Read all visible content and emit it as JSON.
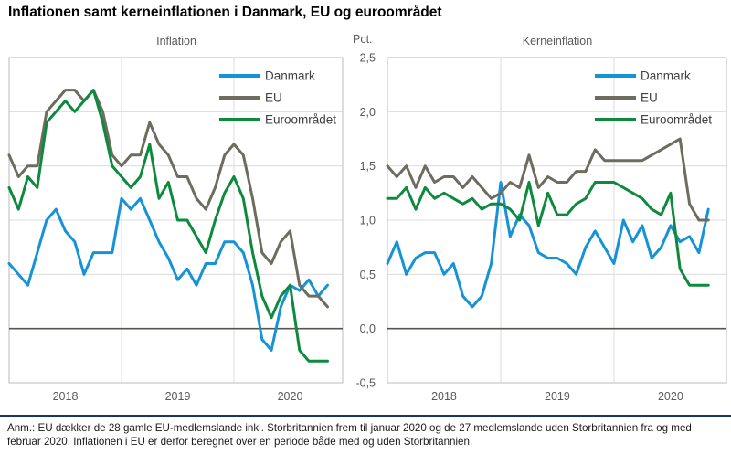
{
  "title": "Inflationen samt kerneinflationen i Danmark, EU og euroområdet",
  "footnote": "Anm.: EU dækker de 28 gamle EU-medlemslande inkl. Storbritannien frem til januar 2020 og de 27 medlemslande uden Storbritannien fra og med februar 2020. Inflationen i EU er derfor beregnet over en periode både med og uden Storbritannien.",
  "unit_label": "Pct.",
  "colors": {
    "danmark": "#1593d6",
    "eu": "#6e6c5e",
    "euroomraadet": "#0e8a3e",
    "gridline": "#dcdcda",
    "plot_border": "#c6c6c4",
    "zero_line": "#55544e",
    "footer_rule": "#16365c",
    "label_text": "#595959",
    "legend_text": "#404040"
  },
  "chart_data": [
    {
      "type": "line",
      "title": "Inflation",
      "x_months": [
        "2018-01",
        "2018-02",
        "2018-03",
        "2018-04",
        "2018-05",
        "2018-06",
        "2018-07",
        "2018-08",
        "2018-09",
        "2018-10",
        "2018-11",
        "2018-12",
        "2019-01",
        "2019-02",
        "2019-03",
        "2019-04",
        "2019-05",
        "2019-06",
        "2019-07",
        "2019-08",
        "2019-09",
        "2019-10",
        "2019-11",
        "2019-12",
        "2020-01",
        "2020-02",
        "2020-03",
        "2020-04",
        "2020-05",
        "2020-06",
        "2020-07",
        "2020-08",
        "2020-09",
        "2020-10",
        "2020-11"
      ],
      "x_tick_labels": [
        "2018",
        "2019",
        "2020"
      ],
      "ylim": [
        -0.5,
        2.5
      ],
      "y_tick_step": 0.5,
      "grid": true,
      "legend_position": "top-right",
      "legend_entries": [
        "Danmark",
        "EU",
        "Euroområdet"
      ],
      "series": [
        {
          "name": "Danmark",
          "color": "#1593d6",
          "values": [
            0.6,
            0.5,
            0.4,
            0.7,
            1.0,
            1.1,
            0.9,
            0.8,
            0.5,
            0.7,
            0.7,
            0.7,
            1.2,
            1.1,
            1.2,
            1.0,
            0.8,
            0.65,
            0.45,
            0.55,
            0.4,
            0.6,
            0.6,
            0.8,
            0.8,
            0.7,
            0.4,
            -0.1,
            -0.2,
            0.2,
            0.4,
            0.35,
            0.45,
            0.3,
            0.4
          ]
        },
        {
          "name": "EU",
          "color": "#6e6c5e",
          "values": [
            1.6,
            1.4,
            1.5,
            1.5,
            2.0,
            2.1,
            2.2,
            2.2,
            2.1,
            2.2,
            2.0,
            1.6,
            1.5,
            1.6,
            1.6,
            1.9,
            1.7,
            1.6,
            1.4,
            1.4,
            1.2,
            1.1,
            1.3,
            1.6,
            1.7,
            1.6,
            1.2,
            0.7,
            0.6,
            0.8,
            0.9,
            0.4,
            0.3,
            0.3,
            0.2
          ]
        },
        {
          "name": "Euroområdet",
          "color": "#0e8a3e",
          "values": [
            1.3,
            1.1,
            1.4,
            1.3,
            1.9,
            2.0,
            2.1,
            2.0,
            2.1,
            2.2,
            1.9,
            1.5,
            1.4,
            1.3,
            1.4,
            1.7,
            1.2,
            1.35,
            1.0,
            1.0,
            0.85,
            0.7,
            1.0,
            1.25,
            1.4,
            1.2,
            0.7,
            0.3,
            0.1,
            0.3,
            0.4,
            -0.2,
            -0.3,
            -0.3,
            -0.3
          ]
        }
      ]
    },
    {
      "type": "line",
      "title": "Kerneinflation",
      "ylabel": "Pct.",
      "x_months": [
        "2018-01",
        "2018-02",
        "2018-03",
        "2018-04",
        "2018-05",
        "2018-06",
        "2018-07",
        "2018-08",
        "2018-09",
        "2018-10",
        "2018-11",
        "2018-12",
        "2019-01",
        "2019-02",
        "2019-03",
        "2019-04",
        "2019-05",
        "2019-06",
        "2019-07",
        "2019-08",
        "2019-09",
        "2019-10",
        "2019-11",
        "2019-12",
        "2020-01",
        "2020-02",
        "2020-03",
        "2020-04",
        "2020-05",
        "2020-06",
        "2020-07",
        "2020-08",
        "2020-09",
        "2020-10",
        "2020-11"
      ],
      "x_tick_labels": [
        "2018",
        "2019",
        "2020"
      ],
      "ylim": [
        -0.5,
        2.5
      ],
      "y_tick_step": 0.5,
      "y_tick_labels": [
        "2,5",
        "2,0",
        "1,5",
        "1,0",
        "0,5",
        "0,0",
        "-0,5"
      ],
      "grid": true,
      "legend_position": "top-right",
      "legend_entries": [
        "Danmark",
        "EU",
        "Euroområdet"
      ],
      "series": [
        {
          "name": "Danmark",
          "color": "#1593d6",
          "values": [
            0.6,
            0.8,
            0.5,
            0.65,
            0.7,
            0.7,
            0.5,
            0.6,
            0.3,
            0.2,
            0.3,
            0.6,
            1.35,
            0.85,
            1.05,
            0.95,
            0.7,
            0.65,
            0.65,
            0.6,
            0.5,
            0.75,
            0.9,
            0.75,
            0.6,
            1.0,
            0.8,
            0.95,
            0.65,
            0.75,
            0.95,
            0.8,
            0.85,
            0.7,
            1.1
          ]
        },
        {
          "name": "EU",
          "color": "#6e6c5e",
          "values": [
            1.5,
            1.4,
            1.5,
            1.3,
            1.5,
            1.35,
            1.4,
            1.4,
            1.3,
            1.4,
            1.3,
            1.2,
            1.25,
            1.35,
            1.3,
            1.6,
            1.3,
            1.4,
            1.35,
            1.35,
            1.45,
            1.45,
            1.65,
            1.55,
            1.55,
            1.55,
            1.55,
            1.55,
            1.6,
            1.65,
            1.7,
            1.75,
            1.15,
            1.0,
            1.0
          ]
        },
        {
          "name": "Euroområdet",
          "color": "#0e8a3e",
          "values": [
            1.2,
            1.2,
            1.3,
            1.1,
            1.3,
            1.2,
            1.25,
            1.2,
            1.15,
            1.2,
            1.1,
            1.15,
            1.15,
            1.1,
            1.0,
            1.35,
            0.95,
            1.25,
            1.05,
            1.05,
            1.15,
            1.2,
            1.35,
            1.35,
            1.35,
            1.3,
            1.25,
            1.2,
            1.1,
            1.05,
            1.25,
            0.55,
            0.4,
            0.4,
            0.4
          ]
        }
      ]
    }
  ]
}
